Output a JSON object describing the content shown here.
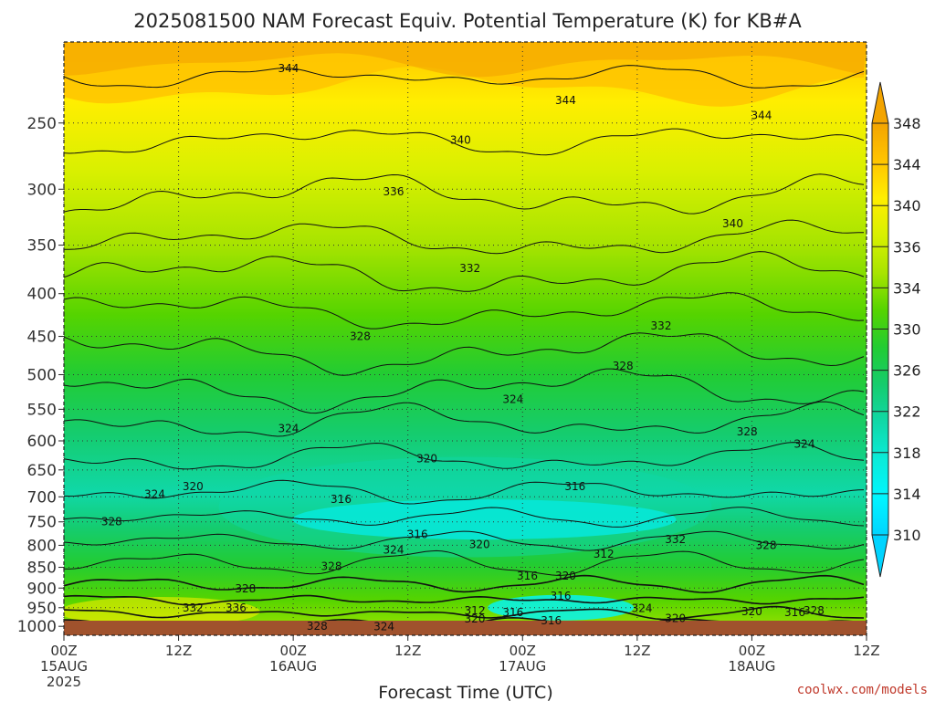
{
  "chart_data": {
    "type": "heatmap",
    "title": "2025081500 NAM Forecast Equiv. Potential Temperature (K) for KB#A",
    "xlabel": "Forecast Time (UTC)",
    "ylabel": "",
    "x_ticks": [
      {
        "hour": 0,
        "label": "00Z",
        "sub": "15AUG",
        "sub2": "2025"
      },
      {
        "hour": 12,
        "label": "12Z",
        "sub": "",
        "sub2": ""
      },
      {
        "hour": 24,
        "label": "00Z",
        "sub": "16AUG",
        "sub2": ""
      },
      {
        "hour": 36,
        "label": "12Z",
        "sub": "",
        "sub2": ""
      },
      {
        "hour": 48,
        "label": "00Z",
        "sub": "17AUG",
        "sub2": ""
      },
      {
        "hour": 60,
        "label": "12Z",
        "sub": "",
        "sub2": ""
      },
      {
        "hour": 72,
        "label": "00Z",
        "sub": "18AUG",
        "sub2": ""
      },
      {
        "hour": 84,
        "label": "12Z",
        "sub": "",
        "sub2": ""
      }
    ],
    "x_range": [
      0,
      84
    ],
    "y_ticks": [
      250,
      300,
      350,
      400,
      450,
      500,
      550,
      600,
      650,
      700,
      750,
      800,
      850,
      900,
      950,
      1000
    ],
    "y_range_hpa": [
      200,
      1025
    ],
    "y_scale": "log",
    "grid": true,
    "colorbar": {
      "labels": [
        348,
        344,
        340,
        336,
        334,
        330,
        326,
        322,
        318,
        314,
        310
      ],
      "colors": [
        "#f3a400",
        "#ffc400",
        "#ffee00",
        "#d8f000",
        "#a8e400",
        "#55d400",
        "#22cc33",
        "#15cc6e",
        "#10d8a8",
        "#0aecda",
        "#00f5ff",
        "#00d4ff"
      ]
    },
    "ground_color": "#a0522d",
    "contour_labels": [
      {
        "hour": 23.5,
        "p": 215,
        "v": "344"
      },
      {
        "hour": 52.5,
        "p": 235,
        "v": "344"
      },
      {
        "hour": 73,
        "p": 245,
        "v": "344"
      },
      {
        "hour": 41.5,
        "p": 262,
        "v": "340"
      },
      {
        "hour": 70,
        "p": 330,
        "v": "340"
      },
      {
        "hour": 34.5,
        "p": 302,
        "v": "336"
      },
      {
        "hour": 42.5,
        "p": 373,
        "v": "332"
      },
      {
        "hour": 62.5,
        "p": 437,
        "v": "332"
      },
      {
        "hour": 31,
        "p": 450,
        "v": "328"
      },
      {
        "hour": 58.5,
        "p": 488,
        "v": "328"
      },
      {
        "hour": 71.5,
        "p": 585,
        "v": "328"
      },
      {
        "hour": 47,
        "p": 535,
        "v": "324"
      },
      {
        "hour": 23.5,
        "p": 580,
        "v": "324"
      },
      {
        "hour": 77.5,
        "p": 605,
        "v": "324"
      },
      {
        "hour": 38,
        "p": 630,
        "v": "320"
      },
      {
        "hour": 13.5,
        "p": 680,
        "v": "320"
      },
      {
        "hour": 9.5,
        "p": 695,
        "v": "324"
      },
      {
        "hour": 5,
        "p": 750,
        "v": "328"
      },
      {
        "hour": 29,
        "p": 705,
        "v": "316"
      },
      {
        "hour": 53.5,
        "p": 680,
        "v": "316"
      },
      {
        "hour": 37,
        "p": 776,
        "v": "316"
      },
      {
        "hour": 34.5,
        "p": 810,
        "v": "324"
      },
      {
        "hour": 43.5,
        "p": 798,
        "v": "320"
      },
      {
        "hour": 56.5,
        "p": 820,
        "v": "312"
      },
      {
        "hour": 64,
        "p": 787,
        "v": "332"
      },
      {
        "hour": 73.5,
        "p": 800,
        "v": "328"
      },
      {
        "hour": 28,
        "p": 848,
        "v": "328"
      },
      {
        "hour": 48.5,
        "p": 870,
        "v": "316"
      },
      {
        "hour": 52.5,
        "p": 870,
        "v": "320"
      },
      {
        "hour": 19,
        "p": 902,
        "v": "328"
      },
      {
        "hour": 52,
        "p": 920,
        "v": "316"
      },
      {
        "hour": 13.5,
        "p": 950,
        "v": "332"
      },
      {
        "hour": 18,
        "p": 950,
        "v": "336"
      },
      {
        "hour": 43,
        "p": 958,
        "v": "312"
      },
      {
        "hour": 47,
        "p": 962,
        "v": "316"
      },
      {
        "hour": 60.5,
        "p": 952,
        "v": "324"
      },
      {
        "hour": 72,
        "p": 960,
        "v": "320"
      },
      {
        "hour": 76.5,
        "p": 962,
        "v": "316"
      },
      {
        "hour": 78.5,
        "p": 958,
        "v": "328"
      },
      {
        "hour": 43,
        "p": 980,
        "v": "320"
      },
      {
        "hour": 64,
        "p": 978,
        "v": "320"
      },
      {
        "hour": 51,
        "p": 985,
        "v": "316"
      },
      {
        "hour": 26.5,
        "p": 1000,
        "v": "328"
      },
      {
        "hour": 33.5,
        "p": 1001,
        "v": "324"
      }
    ]
  },
  "credit": "coolwx.com/models"
}
